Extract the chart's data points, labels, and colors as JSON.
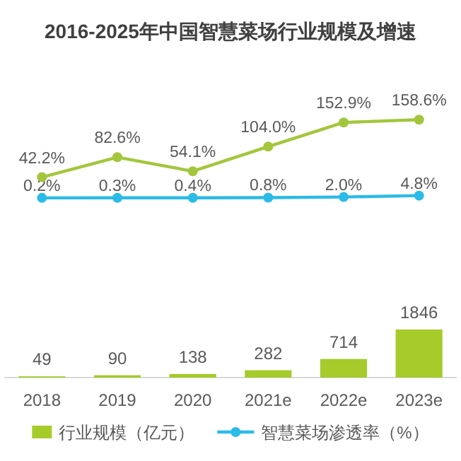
{
  "chart_data": [
    {
      "type": "line",
      "title": "2016-2025年中国智慧菜场行业规模及增速",
      "categories": [
        null,
        null,
        null,
        null,
        null,
        null
      ],
      "series": [
        {
          "name": "智慧菜场渗透率（%）",
          "color": "#2bbbe8",
          "values": [
            0.2,
            0.3,
            0.4,
            0.8,
            2.0,
            4.8
          ],
          "value_labels": [
            "0.2%",
            "0.3%",
            "0.4%",
            "0.8%",
            "2.0%",
            "4.8%"
          ]
        },
        {
          "color": "#a3c63c",
          "values": [
            42.2,
            82.6,
            54.1,
            104.0,
            152.9,
            158.6
          ],
          "value_labels": [
            "42.2%",
            "82.6%",
            "54.1%",
            "104.0%",
            "152.9%",
            "158.6%"
          ]
        }
      ],
      "tick_labels": false,
      "marker": "circle",
      "line_style": "solid"
    },
    {
      "type": "bar",
      "categories": [
        "2018",
        "2019",
        "2020",
        "2021e",
        "2022e",
        "2023e"
      ],
      "series": [
        {
          "name": "行业规模（亿元）",
          "color": "#a6cb2a",
          "values": [
            49,
            90,
            138,
            282,
            714,
            1846
          ],
          "value_labels": [
            "49",
            "90",
            "138",
            "282",
            "714",
            "1846"
          ]
        }
      ],
      "tick_labels": "x",
      "legend": "bottom"
    }
  ]
}
